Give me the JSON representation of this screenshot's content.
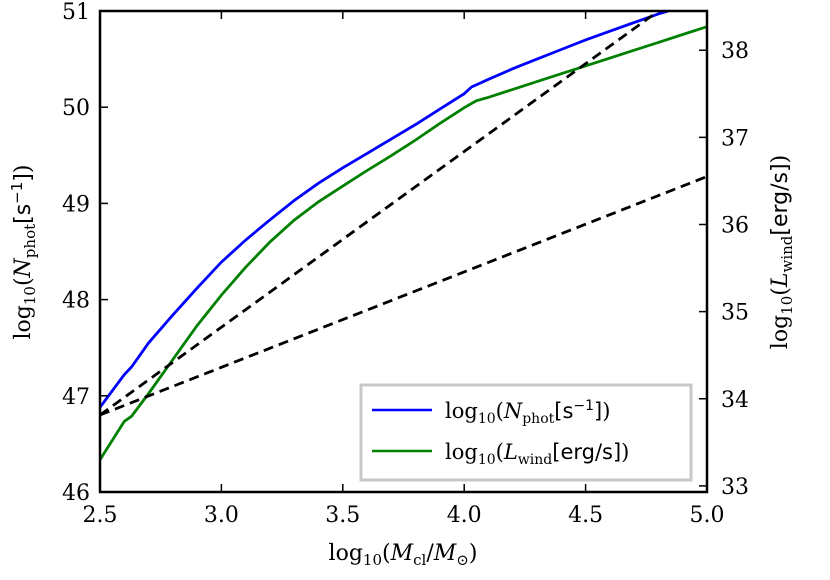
{
  "chart_data": {
    "type": "line",
    "title": "",
    "xlabel": "log10(Mcl/M⊙)",
    "ylabel_left": "log10(Nphot[s−1])",
    "ylabel_right": "log10(Lwind[erg/s])",
    "xlim": [
      2.5,
      5.0
    ],
    "ylim_left": [
      46,
      51
    ],
    "ylim_right": [
      32.93,
      38.45
    ],
    "x_ticks": [
      "2.5",
      "3.0",
      "3.5",
      "4.0",
      "4.5",
      "5.0"
    ],
    "y_left_ticks": [
      "46",
      "47",
      "48",
      "49",
      "50",
      "51"
    ],
    "y_right_ticks": [
      "33",
      "34",
      "35",
      "36",
      "37",
      "38"
    ],
    "grid": false,
    "legend_position": "lower-right",
    "series": [
      {
        "name": "log10(Nphot[s−1])",
        "axis": "left",
        "color": "#0000ff",
        "style": "solid",
        "x": [
          2.5,
          2.55,
          2.6,
          2.63,
          2.7,
          2.8,
          2.85,
          2.9,
          3.0,
          3.1,
          3.2,
          3.3,
          3.4,
          3.5,
          3.6,
          3.7,
          3.8,
          3.9,
          4.0,
          4.03,
          4.1,
          4.2,
          4.3,
          4.4,
          4.5,
          4.6,
          4.7,
          4.8,
          4.84
        ],
        "y": [
          46.88,
          47.05,
          47.22,
          47.3,
          47.55,
          47.84,
          47.98,
          48.12,
          48.39,
          48.62,
          48.83,
          49.03,
          49.21,
          49.37,
          49.52,
          49.67,
          49.82,
          49.98,
          50.14,
          50.21,
          50.29,
          50.4,
          50.5,
          50.6,
          50.7,
          50.79,
          50.88,
          50.97,
          51.0
        ]
      },
      {
        "name": "log10(Lwind[erg/s])",
        "axis": "right",
        "color": "#008000",
        "style": "solid",
        "x": [
          2.5,
          2.55,
          2.6,
          2.63,
          2.7,
          2.8,
          2.9,
          3.0,
          3.1,
          3.2,
          3.3,
          3.4,
          3.5,
          3.6,
          3.7,
          3.8,
          3.9,
          4.0,
          4.05,
          4.1,
          4.2,
          4.3,
          4.4,
          4.5,
          4.6,
          4.7,
          4.8,
          4.9,
          5.0
        ],
        "y": [
          33.3,
          33.52,
          33.74,
          33.8,
          34.06,
          34.45,
          34.84,
          35.19,
          35.51,
          35.8,
          36.05,
          36.26,
          36.44,
          36.62,
          36.79,
          36.97,
          37.16,
          37.34,
          37.42,
          37.46,
          37.55,
          37.64,
          37.73,
          37.82,
          37.91,
          38.0,
          38.09,
          38.18,
          38.27
        ]
      },
      {
        "name": "",
        "axis": "left",
        "color": "#000000",
        "style": "dashed",
        "x": [
          2.5,
          4.8
        ],
        "y": [
          46.8,
          51.0
        ]
      },
      {
        "name": "",
        "axis": "left",
        "color": "#000000",
        "style": "dashed",
        "x": [
          2.5,
          5.0
        ],
        "y": [
          46.8,
          49.28
        ]
      }
    ]
  }
}
